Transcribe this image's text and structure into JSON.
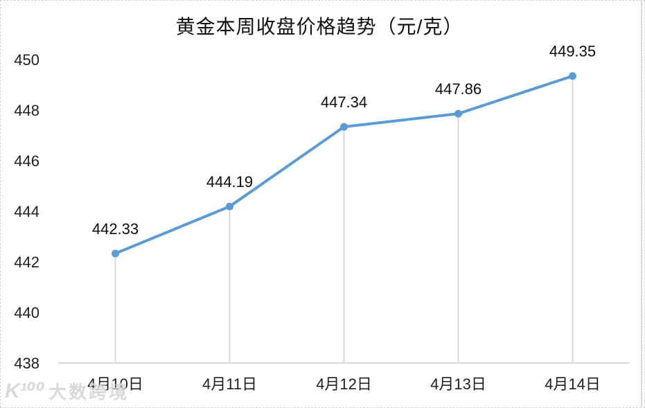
{
  "chart_data": {
    "type": "line",
    "title": "黄金本周收盘价格趋势（元/克）",
    "categories": [
      "4月10日",
      "4月11日",
      "4月12日",
      "4月13日",
      "4月14日"
    ],
    "values": [
      442.33,
      444.19,
      447.34,
      447.86,
      449.35
    ],
    "data_labels": [
      "442.33",
      "444.19",
      "447.34",
      "447.86",
      "449.35"
    ],
    "xlabel": "",
    "ylabel": "",
    "ylim": [
      438,
      450
    ],
    "y_ticks": [
      438,
      440,
      442,
      444,
      446,
      448,
      450
    ],
    "grid": false,
    "legend": "none",
    "drop_lines": true,
    "colors": {
      "line": "#5B9BD5",
      "marker": "#5B9BD5",
      "axis": "#D9D9D9",
      "drop_line": "#D9D9D9",
      "tick_label": "#1F1F1F",
      "data_label": "#0D0D0D"
    }
  },
  "watermark": {
    "logo": "K¹⁰⁰",
    "text": "大数跨境"
  }
}
